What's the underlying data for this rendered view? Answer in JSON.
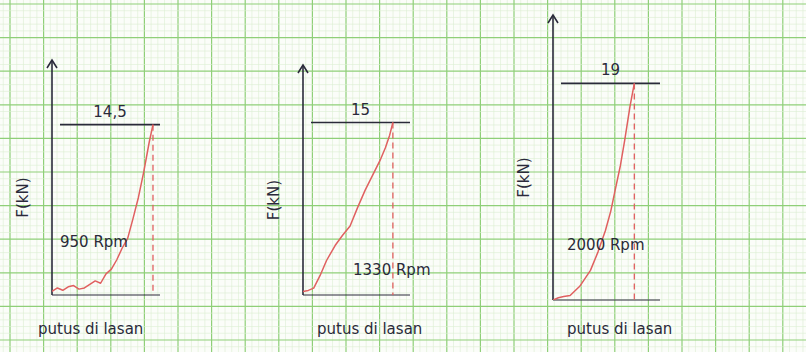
{
  "chart_data": [
    {
      "type": "line",
      "ylabel": "F(kN)",
      "annotation": "950 Rpm",
      "caption": "putus di lasan",
      "peak": {
        "value": 14.5,
        "label": "14,5"
      },
      "x": [
        0,
        0.5,
        1,
        1.5,
        2,
        2.5,
        3,
        3.5,
        4,
        4.5,
        5,
        5.5,
        6,
        6.5,
        7,
        7.5,
        8,
        8.5,
        9,
        9.35
      ],
      "values": [
        0.3,
        0.6,
        0.4,
        0.7,
        0.8,
        0.5,
        0.6,
        0.9,
        1.2,
        1.0,
        1.8,
        2.2,
        3.0,
        4.0,
        4.8,
        6.5,
        8.3,
        10.5,
        13.0,
        14.5
      ],
      "xlim": [
        0,
        10
      ],
      "ylim": [
        0,
        20
      ],
      "tick_labels": false,
      "color": "#e06060",
      "line_style": "solid"
    },
    {
      "type": "line",
      "ylabel": "F(kN)",
      "annotation": "1330 Rpm",
      "caption": "putus di lasan",
      "peak": 15,
      "x": [
        0,
        0.5,
        1,
        1.6,
        2.2,
        3,
        3.7,
        4.4,
        5.1,
        5.8,
        6.5,
        7.2,
        7.7,
        8.1,
        8.4
      ],
      "values": [
        0.3,
        0.4,
        0.6,
        1.7,
        3.0,
        4.3,
        5.2,
        6.0,
        7.6,
        9.1,
        10.4,
        11.7,
        12.8,
        13.9,
        15
      ],
      "xlim": [
        0,
        10
      ],
      "ylim": [
        0,
        20
      ],
      "tick_labels": false,
      "color": "#e06060",
      "line_style": "solid"
    },
    {
      "type": "line",
      "ylabel": "F(kN)",
      "annotation": "2000 Rpm",
      "caption": "putus di lasan",
      "peak": 19,
      "x": [
        0,
        0.5,
        1,
        1.6,
        2.5,
        3.5,
        4.2,
        4.9,
        5.4,
        5.8,
        6.3,
        6.7,
        7.2,
        7.6
      ],
      "values": [
        0,
        0.2,
        0.3,
        0.4,
        1.2,
        2.6,
        4.2,
        6.1,
        7.8,
        9.6,
        11.8,
        14.0,
        17.0,
        19
      ],
      "xlim": [
        0,
        10
      ],
      "ylim": [
        0,
        25
      ],
      "tick_labels": false,
      "color": "#e06060",
      "line_style": "solid"
    }
  ]
}
